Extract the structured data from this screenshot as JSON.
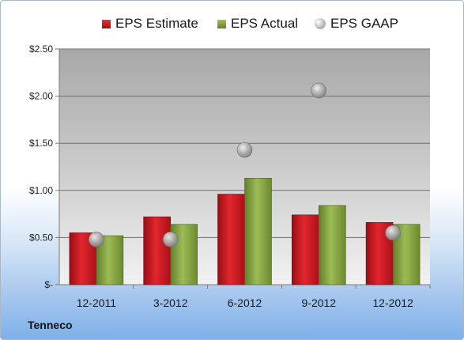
{
  "chart_data": {
    "type": "bar",
    "categories": [
      "12-2011",
      "3-2012",
      "6-2012",
      "9-2012",
      "12-2012"
    ],
    "series": [
      {
        "name": "EPS Estimate",
        "kind": "bar",
        "color": "#c0141c",
        "values": [
          0.55,
          0.72,
          0.96,
          0.74,
          0.66
        ]
      },
      {
        "name": "EPS Actual",
        "kind": "bar",
        "color": "#7f9f3a",
        "values": [
          0.52,
          0.64,
          1.13,
          0.84,
          0.64
        ]
      },
      {
        "name": "EPS GAAP",
        "kind": "scatter",
        "color": "#a6a6a6",
        "values": [
          0.48,
          0.48,
          1.43,
          2.06,
          0.55
        ]
      }
    ],
    "yticks": [
      "$-",
      "$0.50",
      "$1.00",
      "$1.50",
      "$2.00",
      "$2.50"
    ],
    "ylim": [
      0,
      2.5
    ],
    "grid": true,
    "legend_position": "top"
  },
  "company": "Tenneco"
}
